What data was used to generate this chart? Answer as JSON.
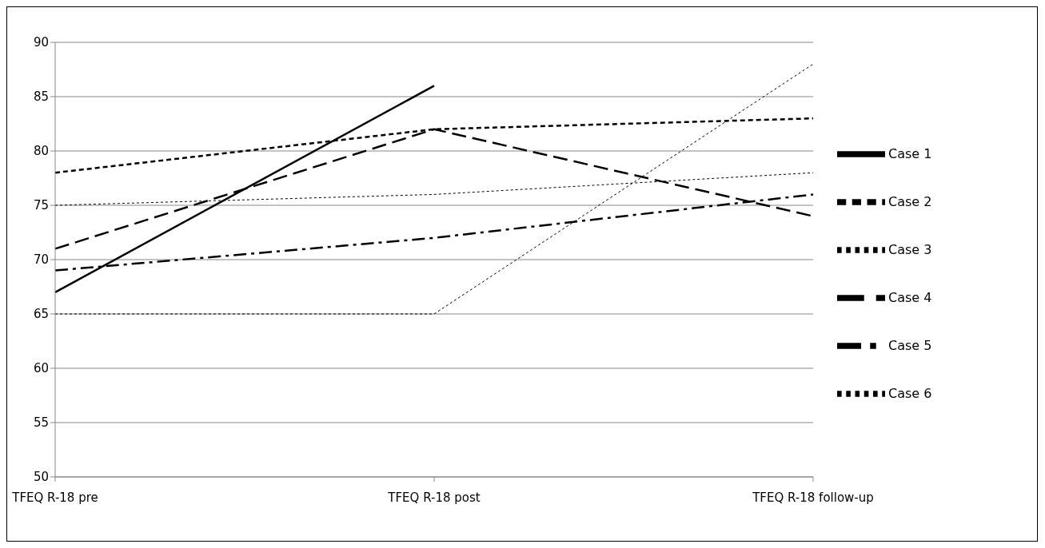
{
  "chart_data": {
    "type": "line",
    "categories": [
      "TFEQ R-18 pre",
      "TFEQ R-18 post",
      "TFEQ R-18 follow-up"
    ],
    "series": [
      {
        "name": "Case 1",
        "color": "#000000",
        "line_style": "solid",
        "values": [
          67,
          86,
          null
        ]
      },
      {
        "name": "Case 2",
        "color": "#000000",
        "line_style": "dotted",
        "values": [
          78,
          82,
          83
        ]
      },
      {
        "name": "Case 3",
        "color": "#000000",
        "line_style": "dotted",
        "values": [
          75,
          76,
          78
        ]
      },
      {
        "name": "Case 4",
        "color": "#000000",
        "line_style": "dashed",
        "values": [
          71,
          82,
          74
        ]
      },
      {
        "name": "Case 5",
        "color": "#000000",
        "line_style": "dashed",
        "values": [
          69,
          72,
          76
        ]
      },
      {
        "name": "Case 6",
        "color": "#000000",
        "line_style": "dotted",
        "values": [
          65,
          65,
          88
        ]
      }
    ],
    "ylim": [
      50,
      90
    ],
    "yticks": [
      50,
      55,
      60,
      65,
      70,
      75,
      80,
      85,
      90
    ],
    "grid": "y",
    "legend": "right"
  }
}
